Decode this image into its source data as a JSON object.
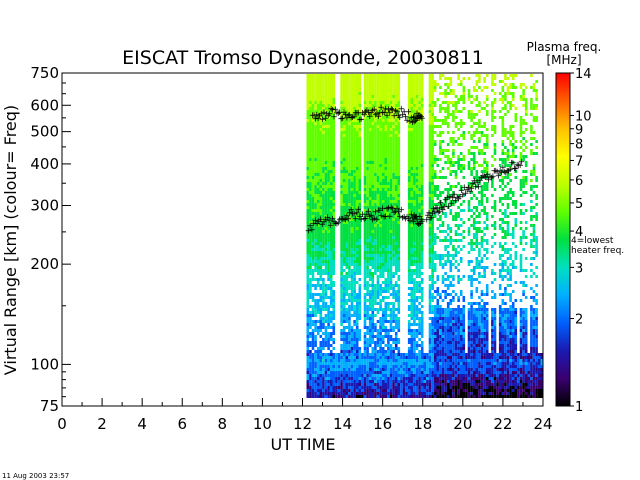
{
  "chart_data": {
    "type": "heatmap",
    "title": "EISCAT Tromso Dynasonde,  20030811",
    "xlabel": "UT TIME",
    "ylabel": "Virtual Range  [km]    (colour= Freq)",
    "x_ticks": [
      "0",
      "2",
      "4",
      "6",
      "8",
      "10",
      "12",
      "14",
      "16",
      "18",
      "20",
      "22",
      "24"
    ],
    "x_range": [
      0,
      24
    ],
    "y_scale": "log",
    "y_range": [
      75,
      750
    ],
    "y_ticks": [
      "75",
      "100",
      "200",
      "300",
      "400",
      "500",
      "600",
      "750"
    ],
    "colorbar": {
      "title": "Plasma freq.",
      "unit": "[MHz]",
      "scale": "log",
      "range": [
        1,
        14
      ],
      "ticks": [
        "1",
        "2",
        "3",
        "4",
        "5",
        "6",
        "7",
        "8",
        "9",
        "10",
        "14"
      ],
      "note_lines": [
        "4=lowest",
        "heater freq."
      ],
      "colors": [
        "#000000",
        "#3a0070",
        "#1a1ab0",
        "#0060ff",
        "#00b0ff",
        "#00e0c0",
        "#00e040",
        "#60ff00",
        "#c0ff00",
        "#ffff00",
        "#ffc000",
        "#ff6000",
        "#ff0000"
      ]
    },
    "data_coverage_hours": [
      12.2,
      24
    ],
    "trace_color": "#000000",
    "trace_marker": "+",
    "traces": [
      {
        "x": [
          12.3,
          13.5,
          14.5,
          15.5,
          16.5,
          17.5,
          18.0
        ],
        "y": [
          260,
          270,
          285,
          280,
          290,
          275,
          270
        ]
      },
      {
        "x": [
          12.5,
          13.5,
          14.5,
          15.5,
          16.5,
          17.5,
          18.0
        ],
        "y": [
          560,
          570,
          560,
          570,
          580,
          550,
          560
        ]
      },
      {
        "x": [
          18.2,
          19,
          20,
          21,
          22,
          23
        ],
        "y": [
          280,
          300,
          330,
          360,
          380,
          410
        ]
      }
    ]
  },
  "footer": {
    "timestamp": "11 Aug 2003 23:57"
  }
}
